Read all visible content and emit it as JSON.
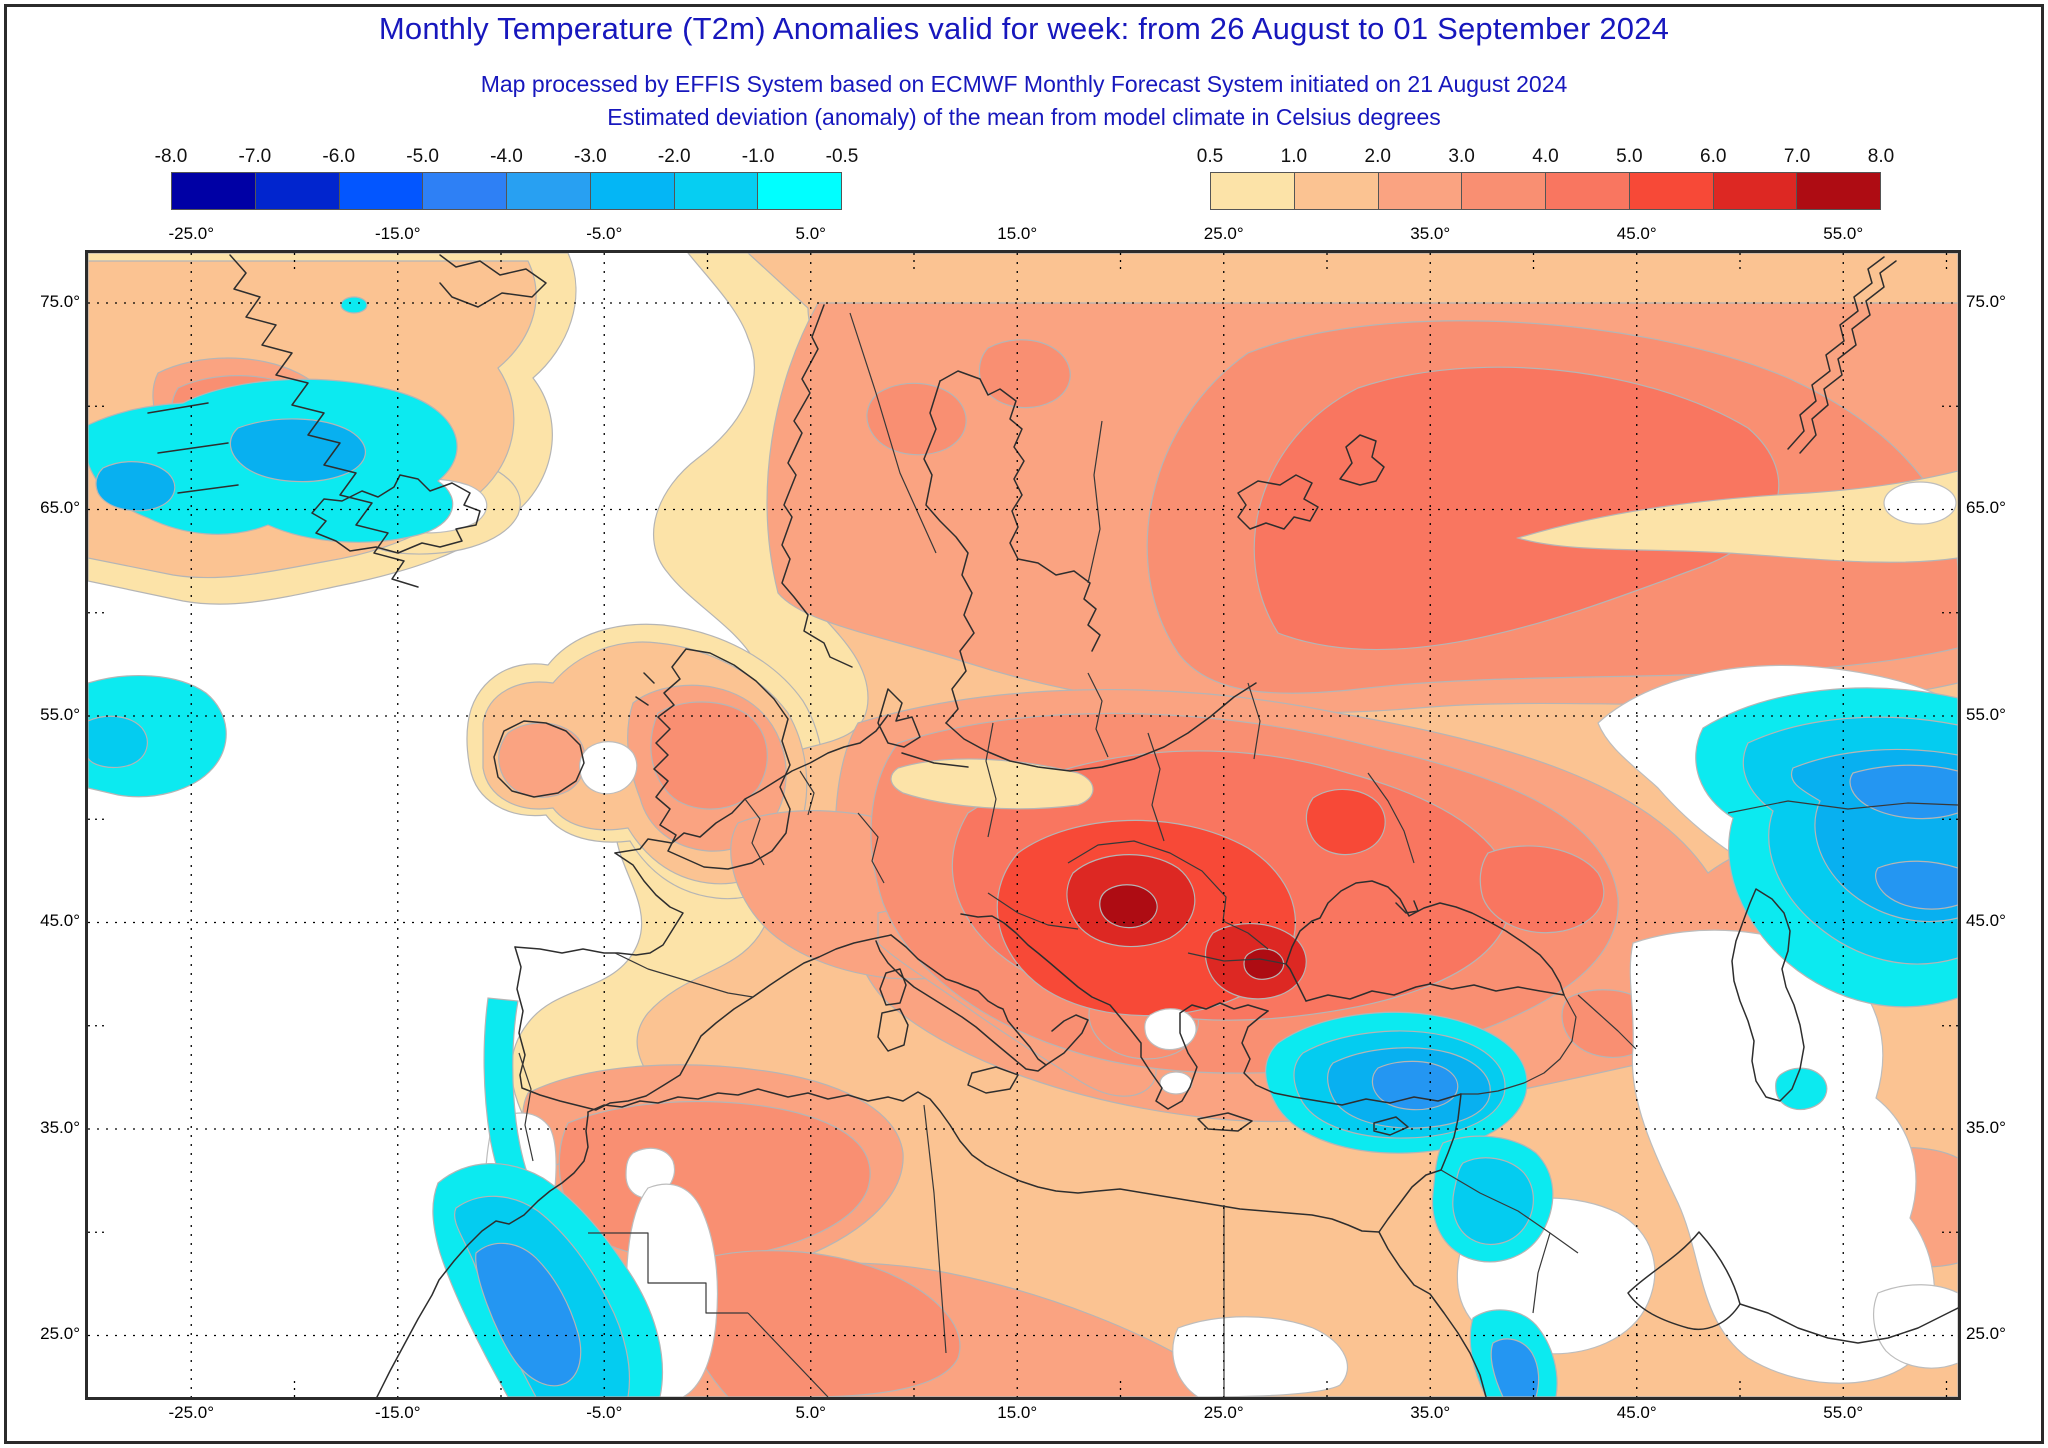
{
  "header": {
    "title": "Monthly Temperature (T2m) Anomalies valid for week: from 26 August to 01 September 2024",
    "subtitle1": "Map processed by EFFIS System based on ECMWF Monthly Forecast System initiated on 21 August 2024",
    "subtitle2": "Estimated deviation (anomaly) of the mean from model climate in Celsius degrees",
    "title_color": "#1717bd"
  },
  "legend_negative": {
    "boundary_labels": [
      "-8.0",
      "-7.0",
      "-6.0",
      "-5.0",
      "-4.0",
      "-3.0",
      "-2.0",
      "-1.0",
      "-0.5"
    ],
    "colors": [
      "#0000a5",
      "#0125ce",
      "#0356ff",
      "#2e80f5",
      "#28a0f2",
      "#04b6f5",
      "#06cef2",
      "#00ffff"
    ]
  },
  "legend_positive": {
    "boundary_labels": [
      "0.5",
      "1.0",
      "2.0",
      "3.0",
      "4.0",
      "5.0",
      "6.0",
      "7.0",
      "8.0"
    ],
    "colors": [
      "#fce3a8",
      "#fbc392",
      "#faa381",
      "#f98f72",
      "#f97660",
      "#f74937",
      "#dd2823",
      "#ae0c13"
    ]
  },
  "map_axes": {
    "top_labels": [
      "-25.0°",
      "-15.0°",
      "-5.0°",
      "5.0°",
      "15.0°",
      "25.0°",
      "35.0°",
      "45.0°",
      "55.0°"
    ],
    "bottom_labels": [
      "-25.0°",
      "-15.0°",
      "-5.0°",
      "5.0°",
      "15.0°",
      "25.0°",
      "35.0°",
      "45.0°",
      "55.0°"
    ],
    "left_labels": [
      "75.0°",
      "65.0°",
      "55.0°",
      "45.0°",
      "35.0°",
      "25.0°"
    ],
    "right_labels": [
      "75.0°",
      "65.0°",
      "55.0°",
      "45.0°",
      "35.0°",
      "25.0°"
    ]
  }
}
